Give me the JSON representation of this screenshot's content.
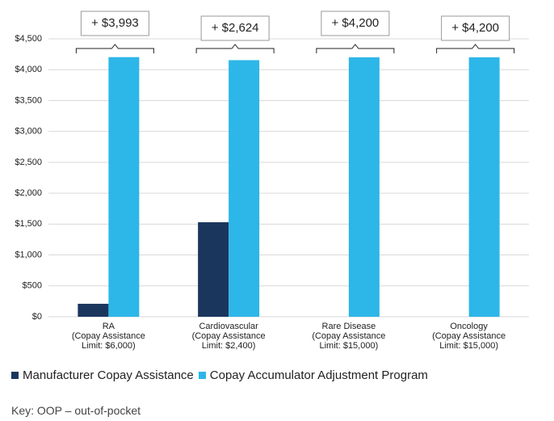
{
  "chart_data": {
    "type": "bar",
    "categories": [
      "RA\n(Copay Assistance\nLimit: $6,000)",
      "Cardiovascular\n(Copay Assistance\nLimit: $2,400)",
      "Rare Disease\n(Copay Assistance\nLimit: $15,000)",
      "Oncology\n(Copay Assistance\nLimit: $15,000)"
    ],
    "series": [
      {
        "name": "Manufacturer Copay Assistance",
        "color": "#1b365d",
        "values": [
          210,
          1530,
          0,
          0
        ]
      },
      {
        "name": "Copay Accumulator Adjustment Program",
        "color": "#2db6e8",
        "values": [
          4203,
          4154,
          4200,
          4200
        ]
      }
    ],
    "annotations": [
      "+ $3,993",
      "+ $2,624",
      "+ $4,200",
      "+ $4,200"
    ],
    "ylim": [
      0,
      4500
    ],
    "yticks": [
      {
        "value": 0,
        "label": "$0"
      },
      {
        "value": 500,
        "label": "$500"
      },
      {
        "value": 1000,
        "label": "$1,000"
      },
      {
        "value": 1500,
        "label": "$1,500"
      },
      {
        "value": 2000,
        "label": "$2,000"
      },
      {
        "value": 2500,
        "label": "$2,500"
      },
      {
        "value": 3000,
        "label": "$3,000"
      },
      {
        "value": 3500,
        "label": "$3,500"
      },
      {
        "value": 4000,
        "label": "$4,000"
      },
      {
        "value": 4500,
        "label": "$4,500"
      }
    ],
    "grid": true,
    "note": "Key: OOP – out-of-pocket"
  }
}
